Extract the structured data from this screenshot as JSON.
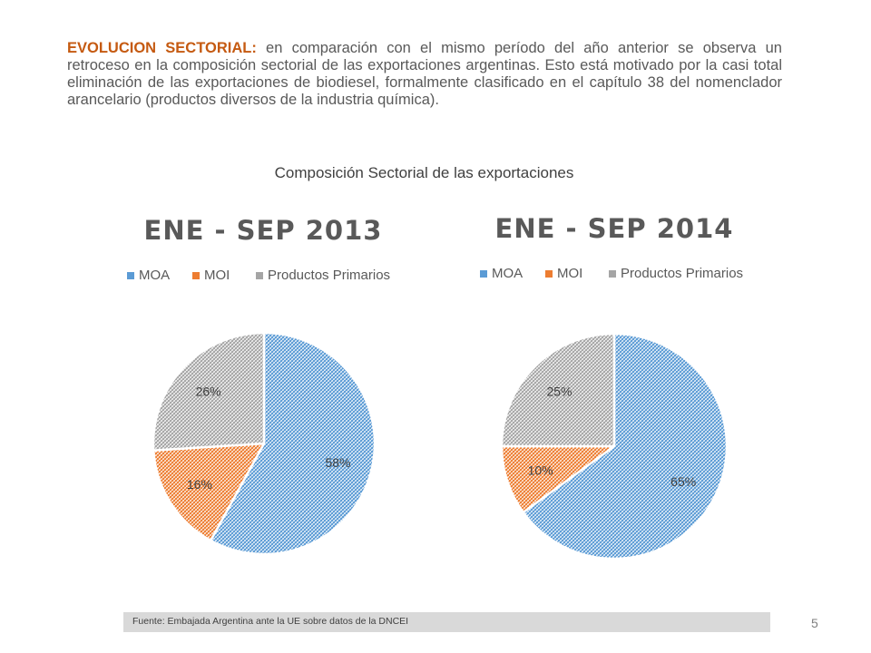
{
  "intro": {
    "lead": "EVOLUCION SECTORIAL:",
    "body": " en comparación con el mismo período del año anterior se observa un retroceso en la composición sectorial de las exportaciones argentinas. Esto está motivado por la casi total eliminación de las exportaciones de biodiesel, formalmente clasificado en el capítulo 38 del nomenclador arancelario (productos diversos de la industria química)."
  },
  "subtitle": "Composición Sectorial de las exportaciones",
  "colors": {
    "MOA": "#5b9bd5",
    "MOI": "#ed7d31",
    "Productos Primarios": "#a5a5a5"
  },
  "chart_data": [
    {
      "type": "pie",
      "title": "ENE - SEP 2013",
      "legend": [
        "MOA",
        "MOI",
        "Productos Primarios"
      ],
      "legend_position": "top",
      "slices": [
        {
          "name": "MOA",
          "value": 58,
          "label": "58%"
        },
        {
          "name": "MOI",
          "value": 16,
          "label": "16%"
        },
        {
          "name": "Productos Primarios",
          "value": 26,
          "label": "26%"
        }
      ]
    },
    {
      "type": "pie",
      "title": "ENE - SEP 2014",
      "legend": [
        "MOA",
        "MOI",
        "Productos Primarios"
      ],
      "legend_position": "top",
      "slices": [
        {
          "name": "MOA",
          "value": 65,
          "label": "65%"
        },
        {
          "name": "MOI",
          "value": 10,
          "label": "10%"
        },
        {
          "name": "Productos Primarios",
          "value": 25,
          "label": "25%"
        }
      ]
    }
  ],
  "footer": {
    "source": "Fuente: Embajada  Argentina ante la UE sobre datos de la DNCEI",
    "page_number": "5"
  }
}
